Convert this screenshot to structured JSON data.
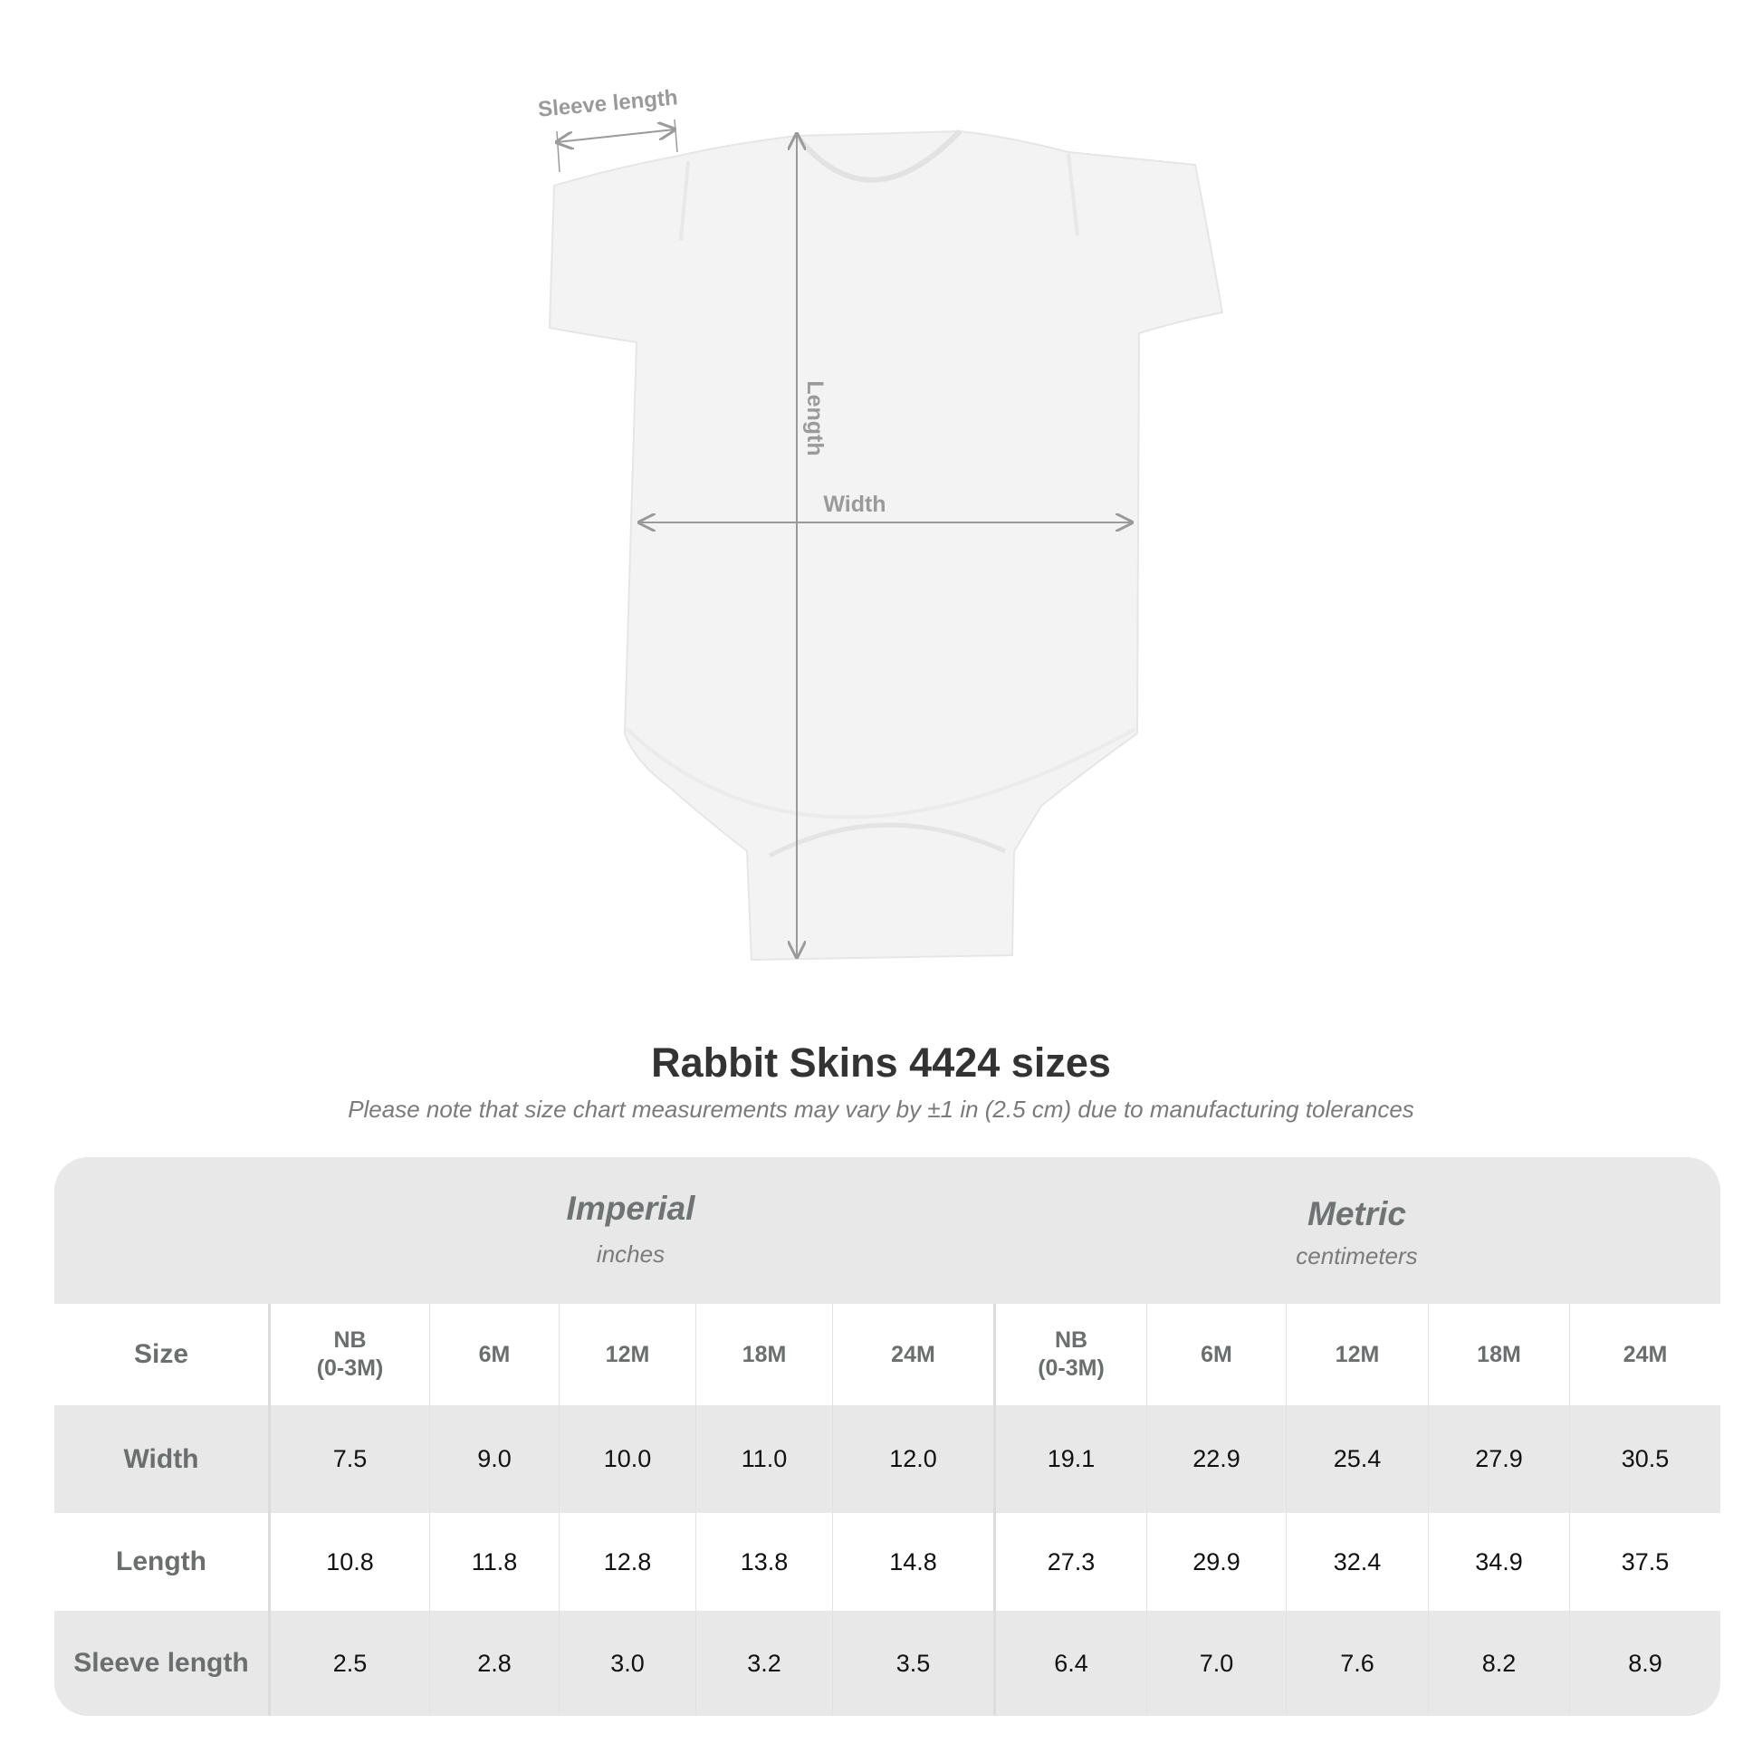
{
  "diagram": {
    "labels": {
      "sleeve_length": "Sleeve length",
      "length": "Length",
      "width": "Width"
    },
    "arrow_color": "#9a9a9a"
  },
  "title": "Rabbit Skins 4424 sizes",
  "subtitle": "Please note that size chart measurements may vary by ±1 in (2.5 cm) due to manufacturing tolerances",
  "table": {
    "imperial": {
      "title": "Imperial",
      "unit": "inches"
    },
    "metric": {
      "title": "Metric",
      "unit": "centimeters"
    },
    "size_label": "Size",
    "sizes": [
      "NB\n(0-3M)",
      "6M",
      "12M",
      "18M",
      "24M"
    ],
    "rows": [
      {
        "label": "Width",
        "imperial": [
          "7.5",
          "9.0",
          "10.0",
          "11.0",
          "12.0"
        ],
        "metric": [
          "19.1",
          "22.9",
          "25.4",
          "27.9",
          "30.5"
        ]
      },
      {
        "label": "Length",
        "imperial": [
          "10.8",
          "11.8",
          "12.8",
          "13.8",
          "14.8"
        ],
        "metric": [
          "27.3",
          "29.9",
          "32.4",
          "34.9",
          "37.5"
        ]
      },
      {
        "label": "Sleeve length",
        "imperial": [
          "2.5",
          "2.8",
          "3.0",
          "3.2",
          "3.5"
        ],
        "metric": [
          "6.4",
          "7.0",
          "7.6",
          "8.2",
          "8.9"
        ]
      }
    ]
  }
}
